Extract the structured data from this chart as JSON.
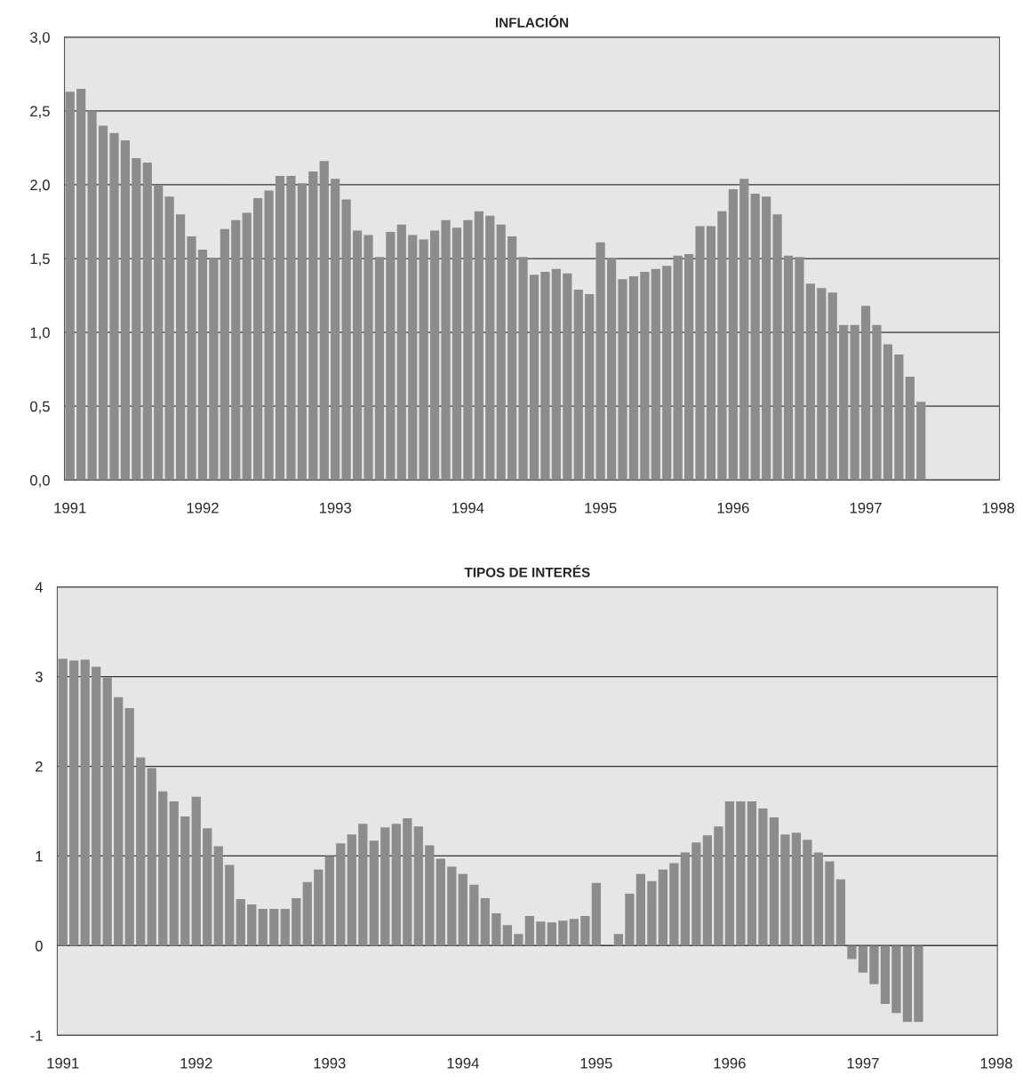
{
  "chart_data": [
    {
      "type": "bar",
      "title": "INFLACIÓN",
      "categories": [
        "1991",
        null,
        null,
        null,
        null,
        null,
        null,
        null,
        null,
        null,
        null,
        null,
        "1992",
        null,
        null,
        null,
        null,
        null,
        null,
        null,
        null,
        null,
        null,
        null,
        "1993",
        null,
        null,
        null,
        null,
        null,
        null,
        null,
        null,
        null,
        null,
        null,
        "1994",
        null,
        null,
        null,
        null,
        null,
        null,
        null,
        null,
        null,
        null,
        null,
        "1995",
        null,
        null,
        null,
        null,
        null,
        null,
        null,
        null,
        null,
        null,
        null,
        "1996",
        null,
        null,
        null,
        null,
        null,
        null,
        null,
        null,
        null,
        null,
        null,
        "1997",
        null,
        null,
        null,
        null,
        null,
        null,
        null,
        null,
        null,
        null,
        null,
        "1998"
      ],
      "values": [
        2.63,
        2.65,
        2.5,
        2.4,
        2.35,
        2.3,
        2.18,
        2.15,
        2.0,
        1.92,
        1.8,
        1.65,
        1.56,
        1.5,
        1.7,
        1.76,
        1.81,
        1.91,
        1.96,
        2.06,
        2.06,
        2.01,
        2.09,
        2.16,
        2.04,
        1.9,
        1.69,
        1.66,
        1.51,
        1.68,
        1.73,
        1.66,
        1.63,
        1.69,
        1.76,
        1.71,
        1.76,
        1.82,
        1.79,
        1.73,
        1.65,
        1.51,
        1.39,
        1.41,
        1.43,
        1.4,
        1.29,
        1.26,
        1.61,
        1.5,
        1.36,
        1.38,
        1.41,
        1.43,
        1.45,
        1.52,
        1.53,
        1.72,
        1.72,
        1.82,
        1.97,
        2.04,
        1.94,
        1.92,
        1.8,
        1.52,
        1.51,
        1.33,
        1.3,
        1.27,
        1.05,
        1.05,
        1.18,
        1.05,
        0.92,
        0.85,
        0.7,
        0.53,
        null,
        null,
        null,
        null,
        null,
        null,
        null
      ],
      "color": "#8c8c8c",
      "ylim": [
        0,
        3
      ],
      "yticks": [
        {
          "value": 0,
          "label": "0,0"
        },
        {
          "value": 0.5,
          "label": "0,5"
        },
        {
          "value": 1,
          "label": "1,0"
        },
        {
          "value": 1.5,
          "label": "1,5"
        },
        {
          "value": 2,
          "label": "2,0"
        },
        {
          "value": 2.5,
          "label": "2,5"
        },
        {
          "value": 3,
          "label": "3,0"
        }
      ],
      "grid": "y",
      "legend": false
    },
    {
      "type": "bar",
      "title": "TIPOS DE INTERÉS",
      "categories": [
        "1991",
        null,
        null,
        null,
        null,
        null,
        null,
        null,
        null,
        null,
        null,
        null,
        "1992",
        null,
        null,
        null,
        null,
        null,
        null,
        null,
        null,
        null,
        null,
        null,
        "1993",
        null,
        null,
        null,
        null,
        null,
        null,
        null,
        null,
        null,
        null,
        null,
        "1994",
        null,
        null,
        null,
        null,
        null,
        null,
        null,
        null,
        null,
        null,
        null,
        "1995",
        null,
        null,
        null,
        null,
        null,
        null,
        null,
        null,
        null,
        null,
        null,
        "1996",
        null,
        null,
        null,
        null,
        null,
        null,
        null,
        null,
        null,
        null,
        null,
        "1997",
        null,
        null,
        null,
        null,
        null,
        null,
        null,
        null,
        null,
        null,
        null,
        "1998"
      ],
      "values": [
        3.2,
        3.18,
        3.19,
        3.11,
        2.99,
        2.77,
        2.65,
        2.1,
        1.98,
        1.72,
        1.61,
        1.44,
        1.66,
        1.31,
        1.11,
        0.9,
        0.52,
        0.46,
        0.41,
        0.41,
        0.41,
        0.53,
        0.71,
        0.85,
        1.0,
        1.14,
        1.24,
        1.36,
        1.17,
        1.32,
        1.36,
        1.42,
        1.33,
        1.12,
        0.97,
        0.88,
        0.8,
        0.68,
        0.53,
        0.36,
        0.23,
        0.13,
        0.33,
        0.27,
        0.26,
        0.28,
        0.3,
        0.33,
        0.7,
        0.0,
        0.13,
        0.58,
        0.8,
        0.72,
        0.85,
        0.92,
        1.04,
        1.15,
        1.23,
        1.33,
        1.61,
        1.61,
        1.61,
        1.53,
        1.43,
        1.24,
        1.26,
        1.18,
        1.04,
        0.94,
        0.74,
        -0.15,
        -0.3,
        -0.43,
        -0.65,
        -0.75,
        -0.85,
        -0.85,
        null,
        null,
        null,
        null,
        null,
        null,
        null
      ],
      "color": "#8c8c8c",
      "ylim": [
        -1,
        4
      ],
      "yticks": [
        {
          "value": -1,
          "label": "-1"
        },
        0,
        1,
        2,
        3,
        4
      ],
      "grid": "y",
      "legend": false
    }
  ]
}
